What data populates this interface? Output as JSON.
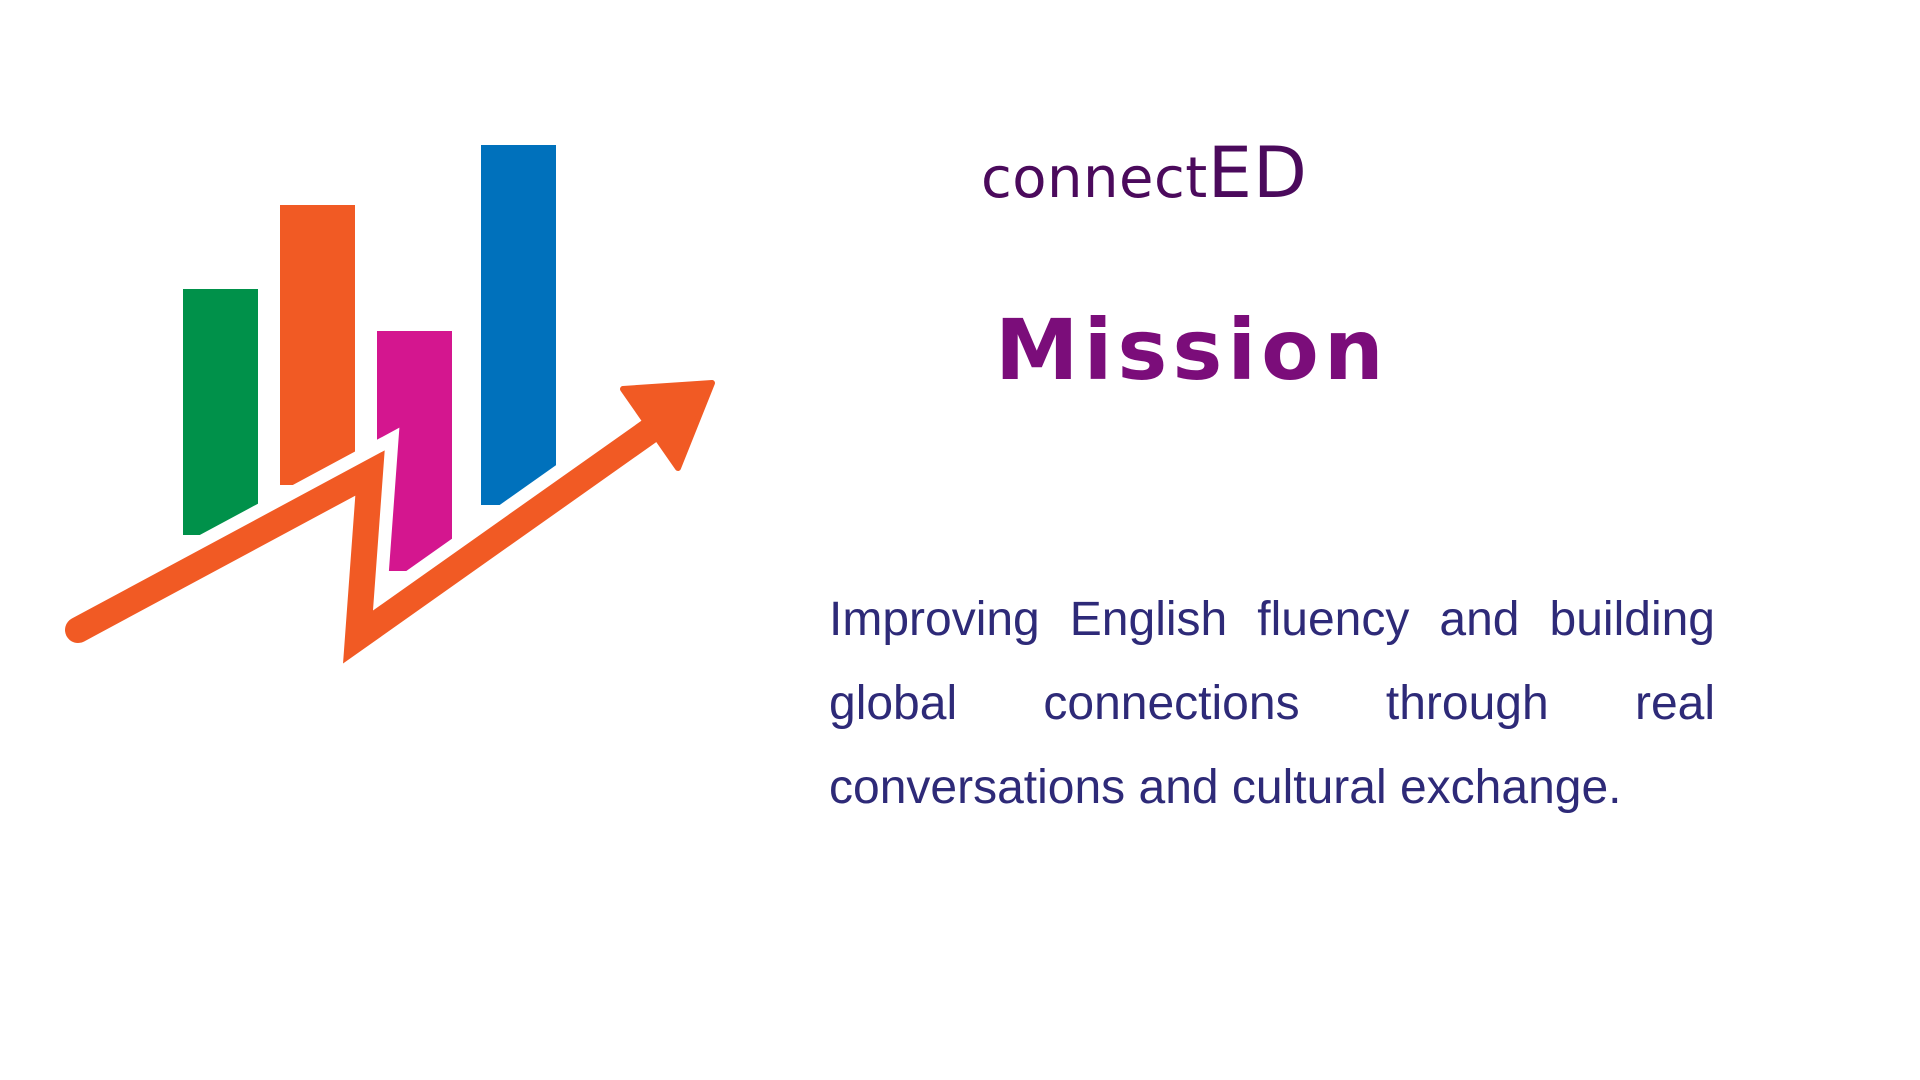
{
  "logo": {
    "word": "connect",
    "suffix": "ED"
  },
  "title": "Mission",
  "body_text": "Improving English fluency and building global connections through real conversations and cultural exchange.",
  "graphic": {
    "icon": "growth-chart-arrow-icon",
    "bar_colors": [
      "#00914a",
      "#f15a24",
      "#d4168f",
      "#0071bc"
    ],
    "arrow_color": "#f15a24"
  },
  "colors": {
    "logo": "#4b0a5c",
    "title": "#7b0d7a",
    "body": "#2e2a78",
    "background": "#ffffff"
  }
}
